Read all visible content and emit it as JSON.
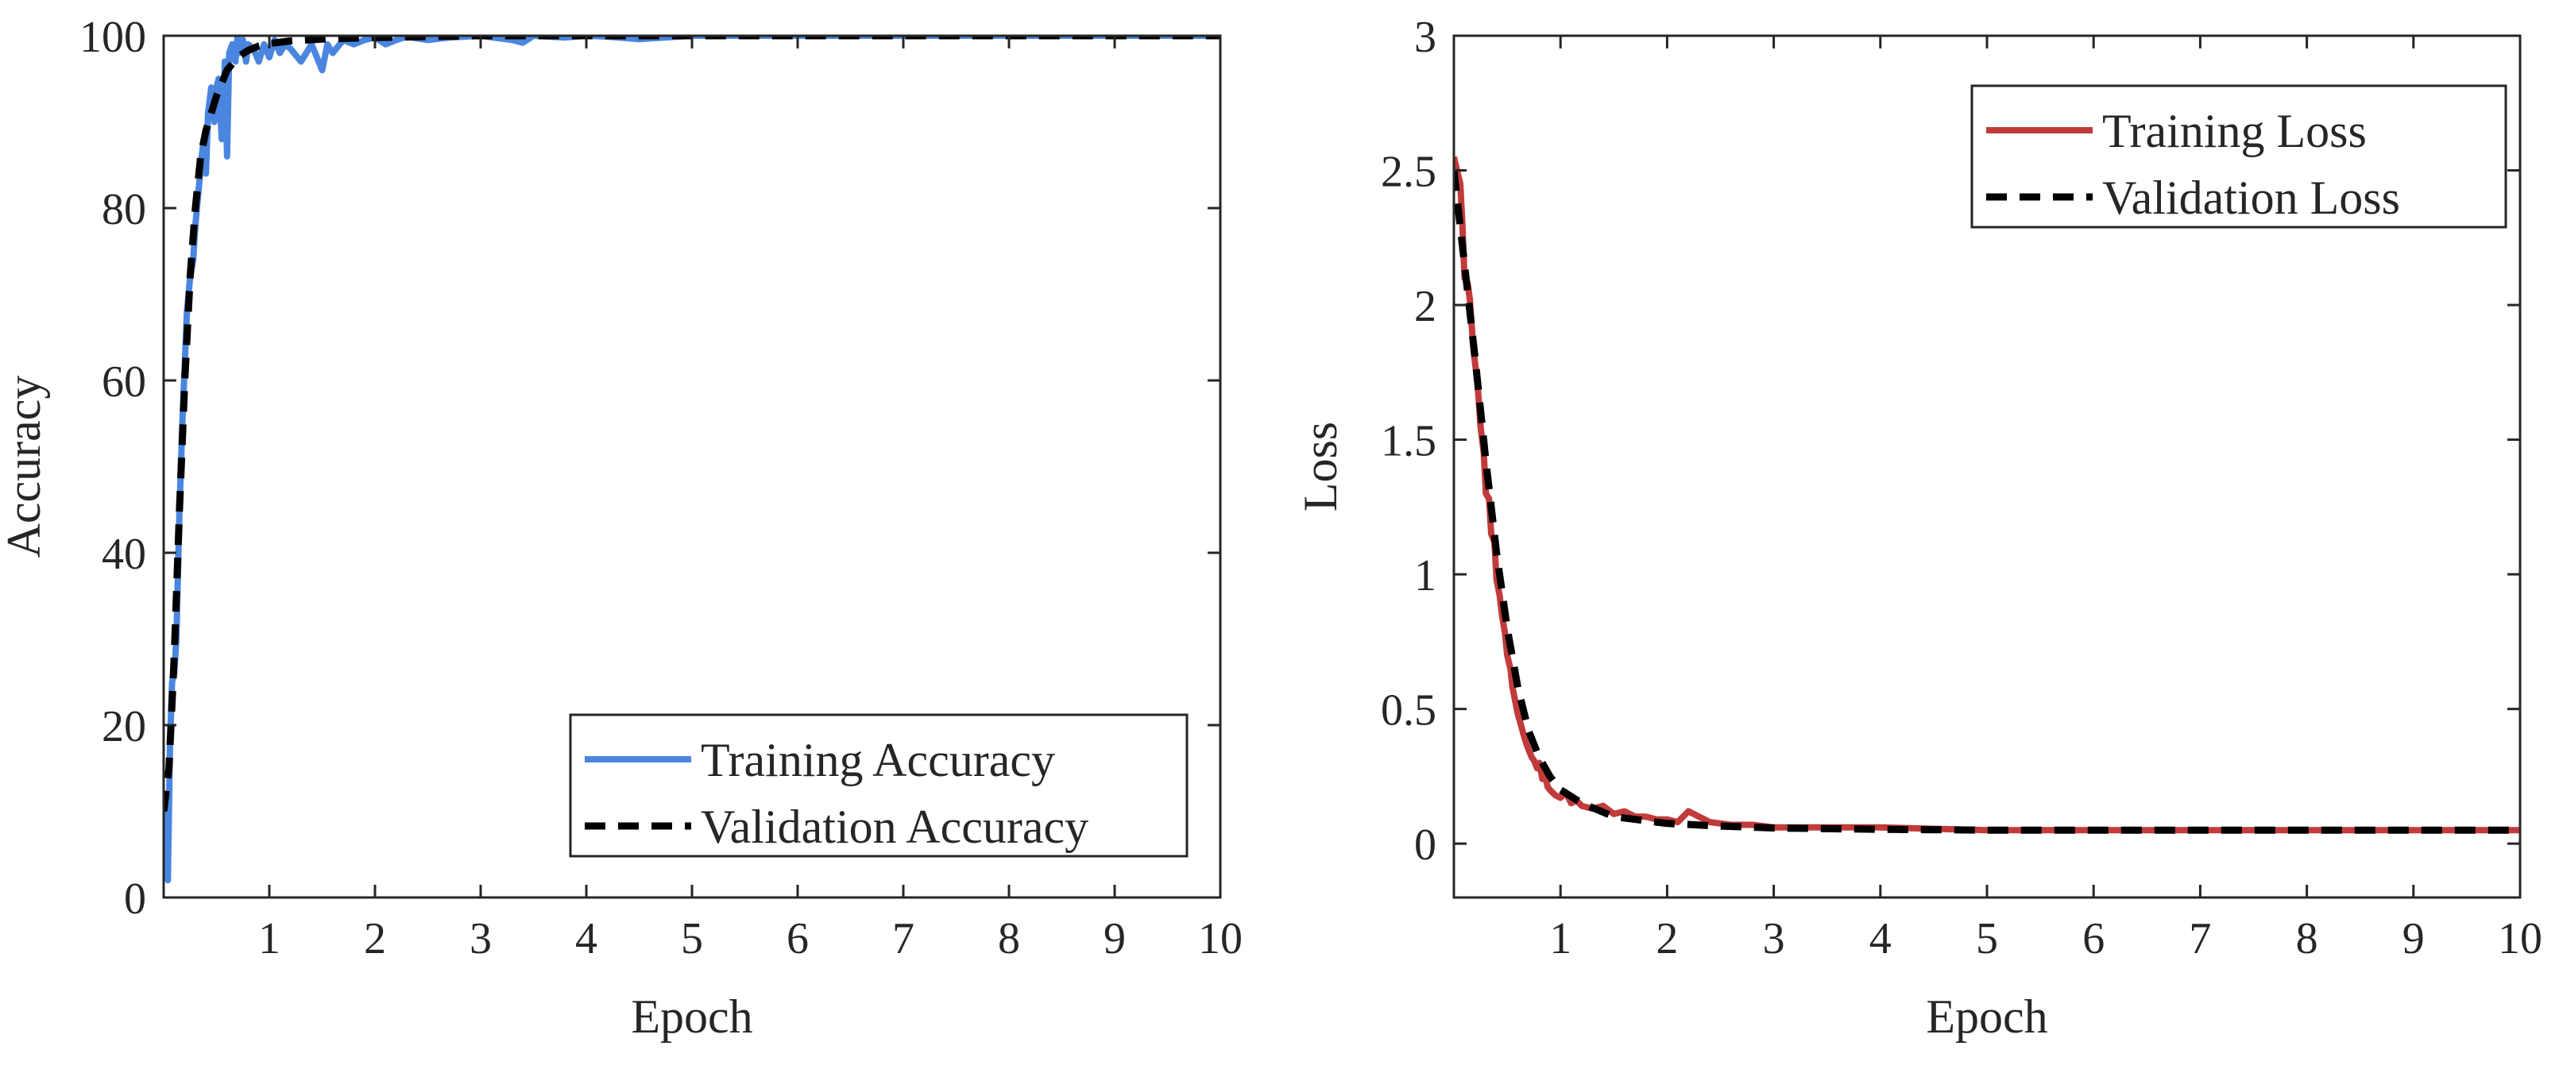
{
  "chart_data": [
    {
      "type": "line",
      "title": "",
      "xlabel": "Epoch",
      "ylabel": "Accuracy",
      "xlim": [
        0,
        10
      ],
      "ylim": [
        0,
        100
      ],
      "xticks": [
        1,
        2,
        3,
        4,
        5,
        6,
        7,
        8,
        9,
        10
      ],
      "yticks": [
        0,
        20,
        40,
        60,
        80,
        100
      ],
      "legend_location": "bottom-right",
      "series": [
        {
          "name": "Training Accuracy",
          "style": "solid",
          "color": "#4a86e0",
          "x": [
            0.0,
            0.02,
            0.04,
            0.06,
            0.08,
            0.1,
            0.12,
            0.15,
            0.18,
            0.2,
            0.22,
            0.25,
            0.28,
            0.3,
            0.33,
            0.36,
            0.38,
            0.4,
            0.42,
            0.45,
            0.48,
            0.5,
            0.52,
            0.55,
            0.58,
            0.6,
            0.62,
            0.65,
            0.68,
            0.7,
            0.72,
            0.75,
            0.78,
            0.8,
            0.85,
            0.9,
            0.95,
            1.0,
            1.05,
            1.1,
            1.15,
            1.2,
            1.3,
            1.4,
            1.5,
            1.55,
            1.6,
            1.7,
            1.8,
            1.9,
            2.0,
            2.1,
            2.2,
            2.3,
            2.5,
            2.7,
            3.0,
            3.3,
            3.4,
            3.5,
            3.8,
            4.0,
            4.2,
            4.5,
            5.0,
            5.5,
            6.0,
            7.0,
            8.0,
            9.0,
            10.0
          ],
          "values": [
            12,
            5,
            2,
            18,
            25,
            26,
            30,
            45,
            56,
            62,
            68,
            72,
            74,
            78,
            82,
            86,
            88,
            84,
            91,
            94,
            90,
            94,
            95,
            88,
            97,
            86,
            98,
            99,
            97,
            100,
            98,
            99.5,
            97,
            99,
            98.5,
            97,
            99,
            97.5,
            99.5,
            98,
            99,
            98.5,
            97,
            99,
            96,
            99,
            98,
            99.5,
            99,
            99.5,
            99.8,
            99,
            99.5,
            99.9,
            99.5,
            99.8,
            100,
            99.5,
            99.2,
            100,
            99.8,
            100,
            99.9,
            99.6,
            100,
            100,
            100,
            100,
            100,
            100,
            100
          ]
        },
        {
          "name": "Validation Accuracy",
          "style": "dashed",
          "color": "#000000",
          "x": [
            0.0,
            0.05,
            0.1,
            0.15,
            0.2,
            0.25,
            0.3,
            0.35,
            0.4,
            0.5,
            0.6,
            0.7,
            0.8,
            0.9,
            1.0,
            1.2,
            1.5,
            2.0,
            2.5,
            3.0,
            4.0,
            5.0,
            6.0,
            7.0,
            8.0,
            9.0,
            10.0
          ],
          "values": [
            10,
            15,
            28,
            45,
            60,
            72,
            80,
            86,
            89,
            93,
            96,
            97.5,
            98.3,
            98.8,
            99.1,
            99.4,
            99.6,
            99.8,
            99.9,
            100,
            100,
            100,
            100,
            100,
            100,
            100,
            100
          ]
        }
      ]
    },
    {
      "type": "line",
      "title": "",
      "xlabel": "Epoch",
      "ylabel": "Loss",
      "xlim": [
        0,
        10
      ],
      "ylim": [
        -0.2,
        3
      ],
      "xticks": [
        1,
        2,
        3,
        4,
        5,
        6,
        7,
        8,
        9,
        10
      ],
      "yticks": [
        0,
        0.5,
        1,
        1.5,
        2,
        2.5,
        3
      ],
      "legend_location": "top-right",
      "series": [
        {
          "name": "Training Loss",
          "style": "solid",
          "color": "#c23b3b",
          "x": [
            0.0,
            0.03,
            0.06,
            0.08,
            0.1,
            0.13,
            0.15,
            0.18,
            0.2,
            0.22,
            0.25,
            0.28,
            0.3,
            0.33,
            0.35,
            0.38,
            0.4,
            0.43,
            0.45,
            0.48,
            0.5,
            0.53,
            0.55,
            0.58,
            0.6,
            0.63,
            0.65,
            0.68,
            0.7,
            0.73,
            0.75,
            0.78,
            0.8,
            0.83,
            0.85,
            0.88,
            0.9,
            0.95,
            1.0,
            1.05,
            1.1,
            1.15,
            1.2,
            1.3,
            1.4,
            1.5,
            1.6,
            1.7,
            1.8,
            1.9,
            2.0,
            2.1,
            2.2,
            2.4,
            2.6,
            2.8,
            3.0,
            3.5,
            4.0,
            5.0,
            6.0,
            7.0,
            8.0,
            9.0,
            10.0
          ],
          "values": [
            2.55,
            2.5,
            2.45,
            2.3,
            2.1,
            2.08,
            2.02,
            1.85,
            1.78,
            1.72,
            1.55,
            1.45,
            1.3,
            1.28,
            1.15,
            1.12,
            0.98,
            0.92,
            0.85,
            0.78,
            0.7,
            0.65,
            0.58,
            0.52,
            0.48,
            0.44,
            0.41,
            0.37,
            0.35,
            0.32,
            0.31,
            0.28,
            0.3,
            0.24,
            0.26,
            0.21,
            0.2,
            0.18,
            0.17,
            0.19,
            0.15,
            0.16,
            0.14,
            0.13,
            0.14,
            0.11,
            0.12,
            0.1,
            0.1,
            0.09,
            0.09,
            0.08,
            0.12,
            0.08,
            0.07,
            0.07,
            0.06,
            0.06,
            0.06,
            0.05,
            0.05,
            0.05,
            0.05,
            0.05,
            0.05
          ]
        },
        {
          "name": "Validation Loss",
          "style": "dashed",
          "color": "#000000",
          "x": [
            0.0,
            0.1,
            0.2,
            0.3,
            0.4,
            0.5,
            0.6,
            0.7,
            0.8,
            0.9,
            1.0,
            1.2,
            1.5,
            2.0,
            2.5,
            3.0,
            4.0,
            5.0,
            6.0,
            7.0,
            8.0,
            9.0,
            10.0
          ],
          "values": [
            2.5,
            2.15,
            1.8,
            1.42,
            1.08,
            0.8,
            0.58,
            0.42,
            0.32,
            0.25,
            0.2,
            0.15,
            0.1,
            0.075,
            0.065,
            0.058,
            0.053,
            0.05,
            0.05,
            0.05,
            0.05,
            0.05,
            0.05
          ]
        }
      ]
    }
  ]
}
